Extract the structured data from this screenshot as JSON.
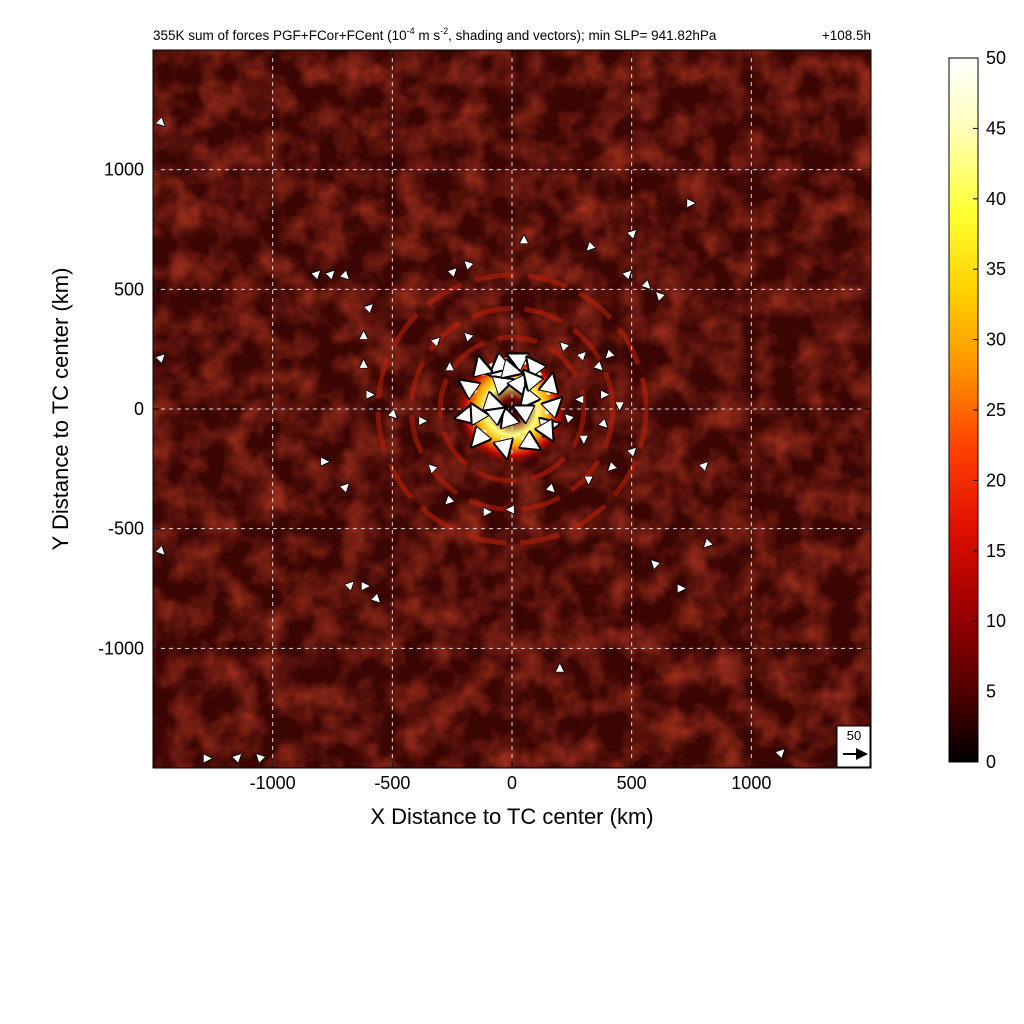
{
  "chart_data": {
    "type": "heatmap",
    "title": {
      "prefix": "355K sum of forces PGF+FCor+FCent (10",
      "exp1": "-4",
      "mid": " m s",
      "exp2": "-2",
      "suffix": ", shading and vectors); min SLP= 941.82hPa",
      "time": "+108.5h"
    },
    "xlabel": "X Distance to TC center (km)",
    "ylabel": "Y Distance to TC center (km)",
    "xlim": [
      -1500,
      1500
    ],
    "ylim": [
      -1500,
      1500
    ],
    "x_ticks": [
      -1000,
      -500,
      0,
      500,
      1000
    ],
    "y_ticks": [
      1000,
      500,
      0,
      -500,
      -1000
    ],
    "grid": true,
    "grid_style": "dashed",
    "colorbar": {
      "min": 0,
      "max": 50,
      "ticks": [
        50,
        45,
        40,
        35,
        30,
        25,
        20,
        15,
        10,
        5,
        0
      ],
      "colormap": "hot",
      "colors": [
        "#000000",
        "#5a0000",
        "#a00000",
        "#e01000",
        "#ff4000",
        "#ff9000",
        "#ffd000",
        "#ffff30",
        "#ffffb0",
        "#ffffff"
      ]
    },
    "field_description": {
      "background_level": 6,
      "inner_core_peak": 50,
      "inner_core_radius_km": 150,
      "spiral_ring_radii_km": [
        300,
        420,
        560
      ],
      "spiral_ring_level": 12
    },
    "vector_reference": {
      "label": "50",
      "magnitude": 50
    },
    "vectors": {
      "inner_core": [
        {
          "x": -90,
          "y": 190,
          "u": 30,
          "v": -40
        },
        {
          "x": -20,
          "y": 210,
          "u": -35,
          "v": -30
        },
        {
          "x": 60,
          "y": 190,
          "u": -40,
          "v": 20
        },
        {
          "x": 120,
          "y": 140,
          "u": -30,
          "v": 40
        },
        {
          "x": 150,
          "y": 60,
          "u": 10,
          "v": 45
        },
        {
          "x": 140,
          "y": -20,
          "u": 35,
          "v": 35
        },
        {
          "x": 110,
          "y": -80,
          "u": 45,
          "v": 10
        },
        {
          "x": 40,
          "y": -120,
          "u": 40,
          "v": -25
        },
        {
          "x": -40,
          "y": -120,
          "u": 10,
          "v": -45
        },
        {
          "x": -110,
          "y": -90,
          "u": -30,
          "v": -35
        },
        {
          "x": -150,
          "y": -20,
          "u": -45,
          "v": -10
        },
        {
          "x": -150,
          "y": 70,
          "u": -35,
          "v": 25
        },
        {
          "x": -120,
          "y": 140,
          "u": -10,
          "v": 40
        },
        {
          "x": -60,
          "y": 100,
          "u": 30,
          "v": 10
        },
        {
          "x": 20,
          "y": 120,
          "u": 15,
          "v": -30
        },
        {
          "x": 80,
          "y": 60,
          "u": -20,
          "v": -25
        },
        {
          "x": 70,
          "y": -20,
          "u": -30,
          "v": 15
        },
        {
          "x": -10,
          "y": -60,
          "u": -10,
          "v": 30
        },
        {
          "x": -80,
          "y": -30,
          "u": 25,
          "v": 20
        },
        {
          "x": -100,
          "y": 30,
          "u": 30,
          "v": -10
        },
        {
          "x": 100,
          "y": 100,
          "u": -25,
          "v": 30
        },
        {
          "x": -40,
          "y": 170,
          "u": 40,
          "v": -10
        },
        {
          "x": 130,
          "y": -60,
          "u": 20,
          "v": -35
        },
        {
          "x": -130,
          "y": -50,
          "u": -20,
          "v": 35
        }
      ],
      "scattered": [
        {
          "x": -820,
          "y": 560,
          "u": 1,
          "v": 1
        },
        {
          "x": -760,
          "y": 560,
          "u": 1,
          "v": 1
        },
        {
          "x": -700,
          "y": 560,
          "u": 1,
          "v": -1
        },
        {
          "x": -250,
          "y": 570,
          "u": 1,
          "v": 1
        },
        {
          "x": -180,
          "y": 600,
          "u": -1,
          "v": 1
        },
        {
          "x": 50,
          "y": 700,
          "u": 0,
          "v": 1
        },
        {
          "x": 330,
          "y": 680,
          "u": -1,
          "v": -1
        },
        {
          "x": 480,
          "y": 560,
          "u": 1,
          "v": 1
        },
        {
          "x": 560,
          "y": 520,
          "u": 1,
          "v": -1
        },
        {
          "x": 620,
          "y": 470,
          "u": -1,
          "v": 1
        },
        {
          "x": 740,
          "y": 860,
          "u": 1,
          "v": 0
        },
        {
          "x": 500,
          "y": 730,
          "u": 1,
          "v": 1
        },
        {
          "x": -600,
          "y": 420,
          "u": 1,
          "v": 1
        },
        {
          "x": -620,
          "y": 300,
          "u": 0,
          "v": 1
        },
        {
          "x": -620,
          "y": 180,
          "u": 0,
          "v": 1
        },
        {
          "x": -600,
          "y": 60,
          "u": 1,
          "v": 0
        },
        {
          "x": -500,
          "y": -20,
          "u": 1,
          "v": -1
        },
        {
          "x": -380,
          "y": -50,
          "u": 1,
          "v": 0
        },
        {
          "x": -320,
          "y": 280,
          "u": 1,
          "v": 1
        },
        {
          "x": -260,
          "y": 170,
          "u": 0,
          "v": 1
        },
        {
          "x": -180,
          "y": 300,
          "u": -1,
          "v": 1
        },
        {
          "x": 220,
          "y": 260,
          "u": -1,
          "v": 1
        },
        {
          "x": 290,
          "y": 220,
          "u": 1,
          "v": 1
        },
        {
          "x": 360,
          "y": 180,
          "u": 1,
          "v": -1
        },
        {
          "x": 410,
          "y": 230,
          "u": -1,
          "v": -1
        },
        {
          "x": 380,
          "y": 60,
          "u": 1,
          "v": 0
        },
        {
          "x": 450,
          "y": 20,
          "u": 0,
          "v": -1
        },
        {
          "x": 380,
          "y": -60,
          "u": 1,
          "v": -1
        },
        {
          "x": 300,
          "y": -120,
          "u": 0,
          "v": -1
        },
        {
          "x": 240,
          "y": -40,
          "u": -1,
          "v": 1
        },
        {
          "x": 290,
          "y": 40,
          "u": -1,
          "v": 0
        },
        {
          "x": 500,
          "y": -180,
          "u": 1,
          "v": 1
        },
        {
          "x": 420,
          "y": -240,
          "u": -1,
          "v": -1
        },
        {
          "x": 320,
          "y": -290,
          "u": 0,
          "v": -1
        },
        {
          "x": 160,
          "y": -330,
          "u": 1,
          "v": -1
        },
        {
          "x": 0,
          "y": -420,
          "u": -1,
          "v": 0
        },
        {
          "x": -110,
          "y": -430,
          "u": 1,
          "v": 0
        },
        {
          "x": -260,
          "y": -380,
          "u": -1,
          "v": -1
        },
        {
          "x": -330,
          "y": -250,
          "u": -1,
          "v": 1
        },
        {
          "x": -700,
          "y": -330,
          "u": 1,
          "v": 1
        },
        {
          "x": -790,
          "y": -220,
          "u": 1,
          "v": 0
        },
        {
          "x": -680,
          "y": -740,
          "u": 1,
          "v": 1
        },
        {
          "x": -620,
          "y": -740,
          "u": 1,
          "v": 0
        },
        {
          "x": -570,
          "y": -790,
          "u": 1,
          "v": -1
        },
        {
          "x": 600,
          "y": -650,
          "u": -1,
          "v": 1
        },
        {
          "x": 700,
          "y": -750,
          "u": 1,
          "v": 0
        },
        {
          "x": 200,
          "y": -1090,
          "u": 0,
          "v": 1
        },
        {
          "x": 820,
          "y": -560,
          "u": -1,
          "v": -1
        },
        {
          "x": 800,
          "y": -240,
          "u": 1,
          "v": 1
        },
        {
          "x": -1470,
          "y": 1200,
          "u": 1,
          "v": -1
        },
        {
          "x": -1470,
          "y": 210,
          "u": 1,
          "v": 1
        },
        {
          "x": -1470,
          "y": -590,
          "u": 1,
          "v": -1
        },
        {
          "x": 1120,
          "y": -1440,
          "u": 1,
          "v": 1
        },
        {
          "x": -1150,
          "y": -1460,
          "u": 1,
          "v": 1
        },
        {
          "x": -1280,
          "y": -1460,
          "u": 1,
          "v": 0
        },
        {
          "x": -1050,
          "y": -1460,
          "u": -1,
          "v": 1
        }
      ]
    }
  }
}
